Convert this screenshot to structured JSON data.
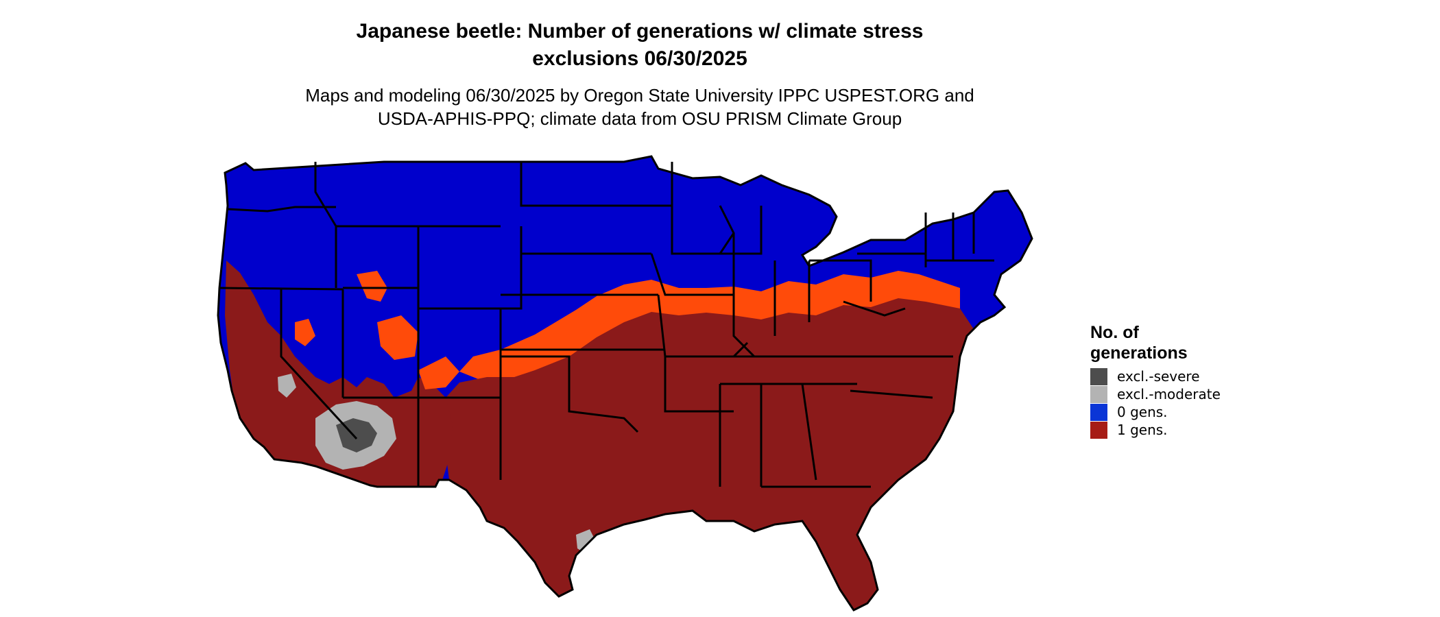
{
  "title": {
    "line1": "Japanese beetle: Number of generations w/ climate stress",
    "line2": "exclusions 06/30/2025"
  },
  "subtitle": {
    "line1": "Maps and modeling 06/30/2025 by Oregon State University IPPC USPEST.ORG and",
    "line2": "USDA-APHIS-PPQ; climate data from OSU PRISM Climate Group"
  },
  "legend": {
    "title_line1": "No. of",
    "title_line2": "generations",
    "items": [
      {
        "label": "excl.-severe",
        "color": "#4d4d4d"
      },
      {
        "label": "excl.-moderate",
        "color": "#b3b3b3"
      },
      {
        "label": "0 gens.",
        "color": "#0a35d6"
      },
      {
        "label": "1 gens.",
        "color": "#a61c16"
      }
    ]
  },
  "map": {
    "region": "contiguous-us",
    "category_colors": {
      "zero_gens": "#0000cc",
      "one_gen": "#8b1a1a",
      "transition_band": "#ff4b0a",
      "excl_moderate": "#b3b3b3",
      "excl_severe": "#4d4d4d"
    },
    "border_color": "#000000"
  }
}
